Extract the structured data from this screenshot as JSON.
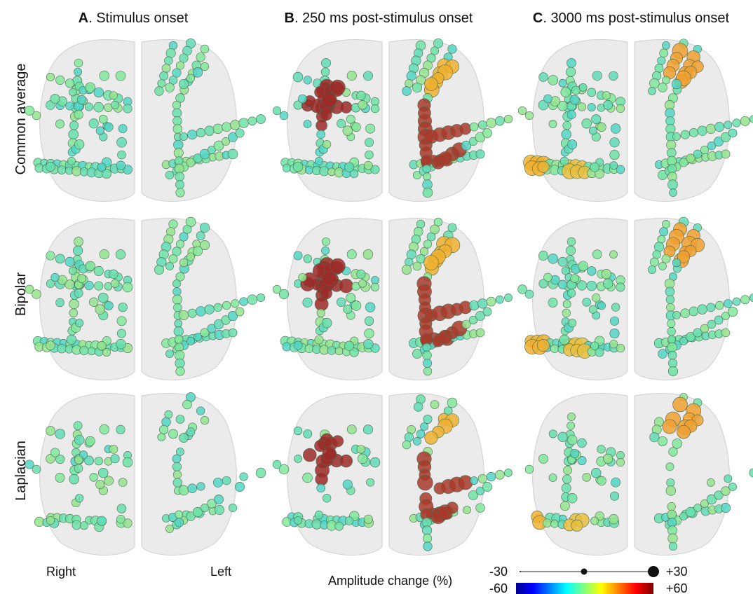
{
  "columns": [
    {
      "letter": "A",
      "title": ". Stimulus onset"
    },
    {
      "letter": "B",
      "title": ". 250 ms post-stimulus onset"
    },
    {
      "letter": "C",
      "title": ". 3000 ms post-stimulus onset"
    }
  ],
  "rows": [
    "Common average",
    "Bipolar",
    "Laplacian"
  ],
  "sides": {
    "right": "Right",
    "left": "Left"
  },
  "legend": {
    "title": "Amplitude change (%)",
    "size_min": "-30",
    "size_max": "+30",
    "color_min": "-60",
    "color_max": "+60"
  }
}
